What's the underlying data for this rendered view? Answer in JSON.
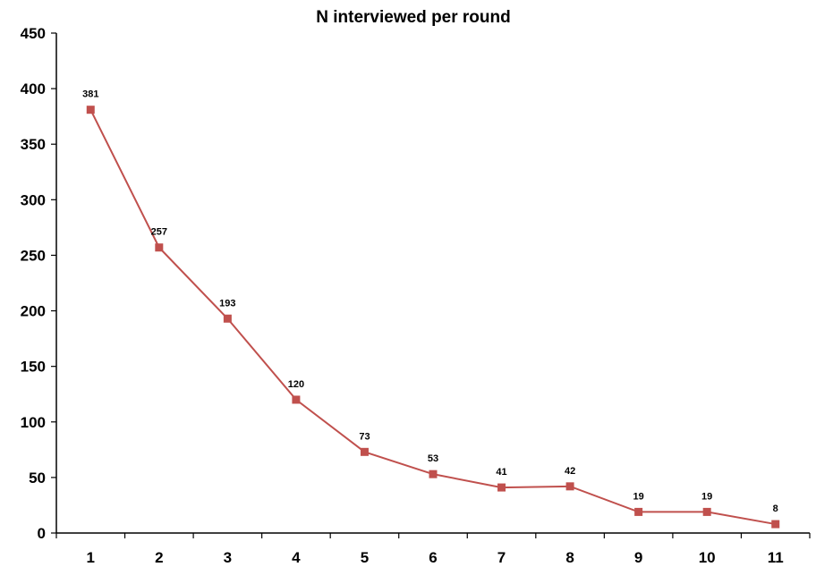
{
  "chart_data": {
    "type": "line",
    "title": "N interviewed per round",
    "xlabel": "",
    "ylabel": "",
    "categories": [
      "1",
      "2",
      "3",
      "4",
      "5",
      "6",
      "7",
      "8",
      "9",
      "10",
      "11"
    ],
    "series": [
      {
        "values": [
          381,
          257,
          193,
          120,
          73,
          53,
          41,
          42,
          19,
          19,
          8
        ],
        "color": "#c0504d",
        "marker": "square"
      }
    ],
    "ylim": [
      0,
      450
    ],
    "yticks": [
      0,
      50,
      100,
      150,
      200,
      250,
      300,
      350,
      400,
      450
    ],
    "data_labels": true,
    "grid": false,
    "legend": "none"
  }
}
